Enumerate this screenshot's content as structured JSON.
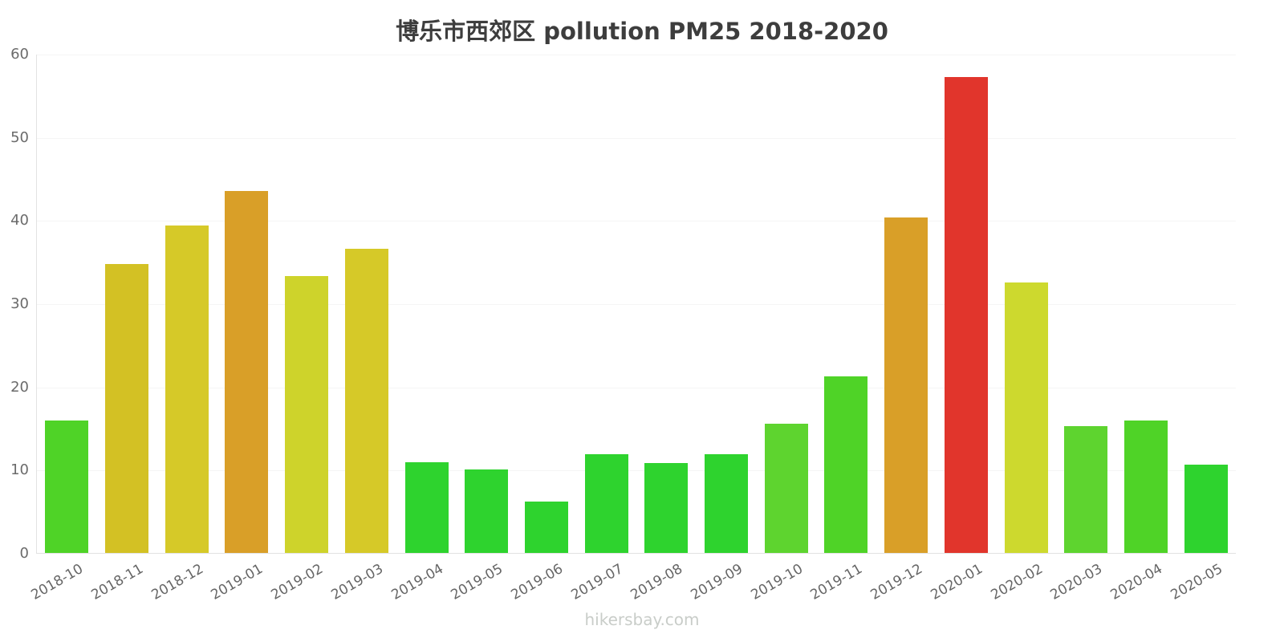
{
  "title": "博乐市西郊区 pollution PM25 2018-2020",
  "footer": "hikersbay.com",
  "chart_data": {
    "type": "bar",
    "title": "博乐市西郊区 pollution PM25 2018-2020",
    "xlabel": "",
    "ylabel": "",
    "ylim": [
      0,
      60
    ],
    "yticks": [
      0,
      10,
      20,
      30,
      40,
      50,
      60
    ],
    "grid": true,
    "legend": "none",
    "categories": [
      "2018-10",
      "2018-11",
      "2018-12",
      "2019-01",
      "2019-02",
      "2019-03",
      "2019-04",
      "2019-05",
      "2019-06",
      "2019-07",
      "2019-08",
      "2019-09",
      "2019-10",
      "2019-11",
      "2019-12",
      "2020-01",
      "2020-02",
      "2020-03",
      "2020-04",
      "2020-05"
    ],
    "values": [
      15.9,
      34.7,
      39.4,
      43.5,
      33.3,
      36.6,
      10.9,
      10.0,
      6.2,
      11.9,
      10.8,
      11.9,
      15.5,
      21.2,
      40.3,
      57.2,
      32.5,
      15.2,
      15.9,
      10.6
    ],
    "colors": [
      "#4fd327",
      "#d3c124",
      "#d6c928",
      "#d99f28",
      "#ced32b",
      "#d6c928",
      "#2ed32e",
      "#2ed32e",
      "#2ed32e",
      "#2ed32e",
      "#2ed32e",
      "#2ed32e",
      "#5ed42f",
      "#4fd327",
      "#d99f28",
      "#e1352c",
      "#cdd92e",
      "#5ed42f",
      "#4fd327",
      "#2ed32e"
    ]
  }
}
